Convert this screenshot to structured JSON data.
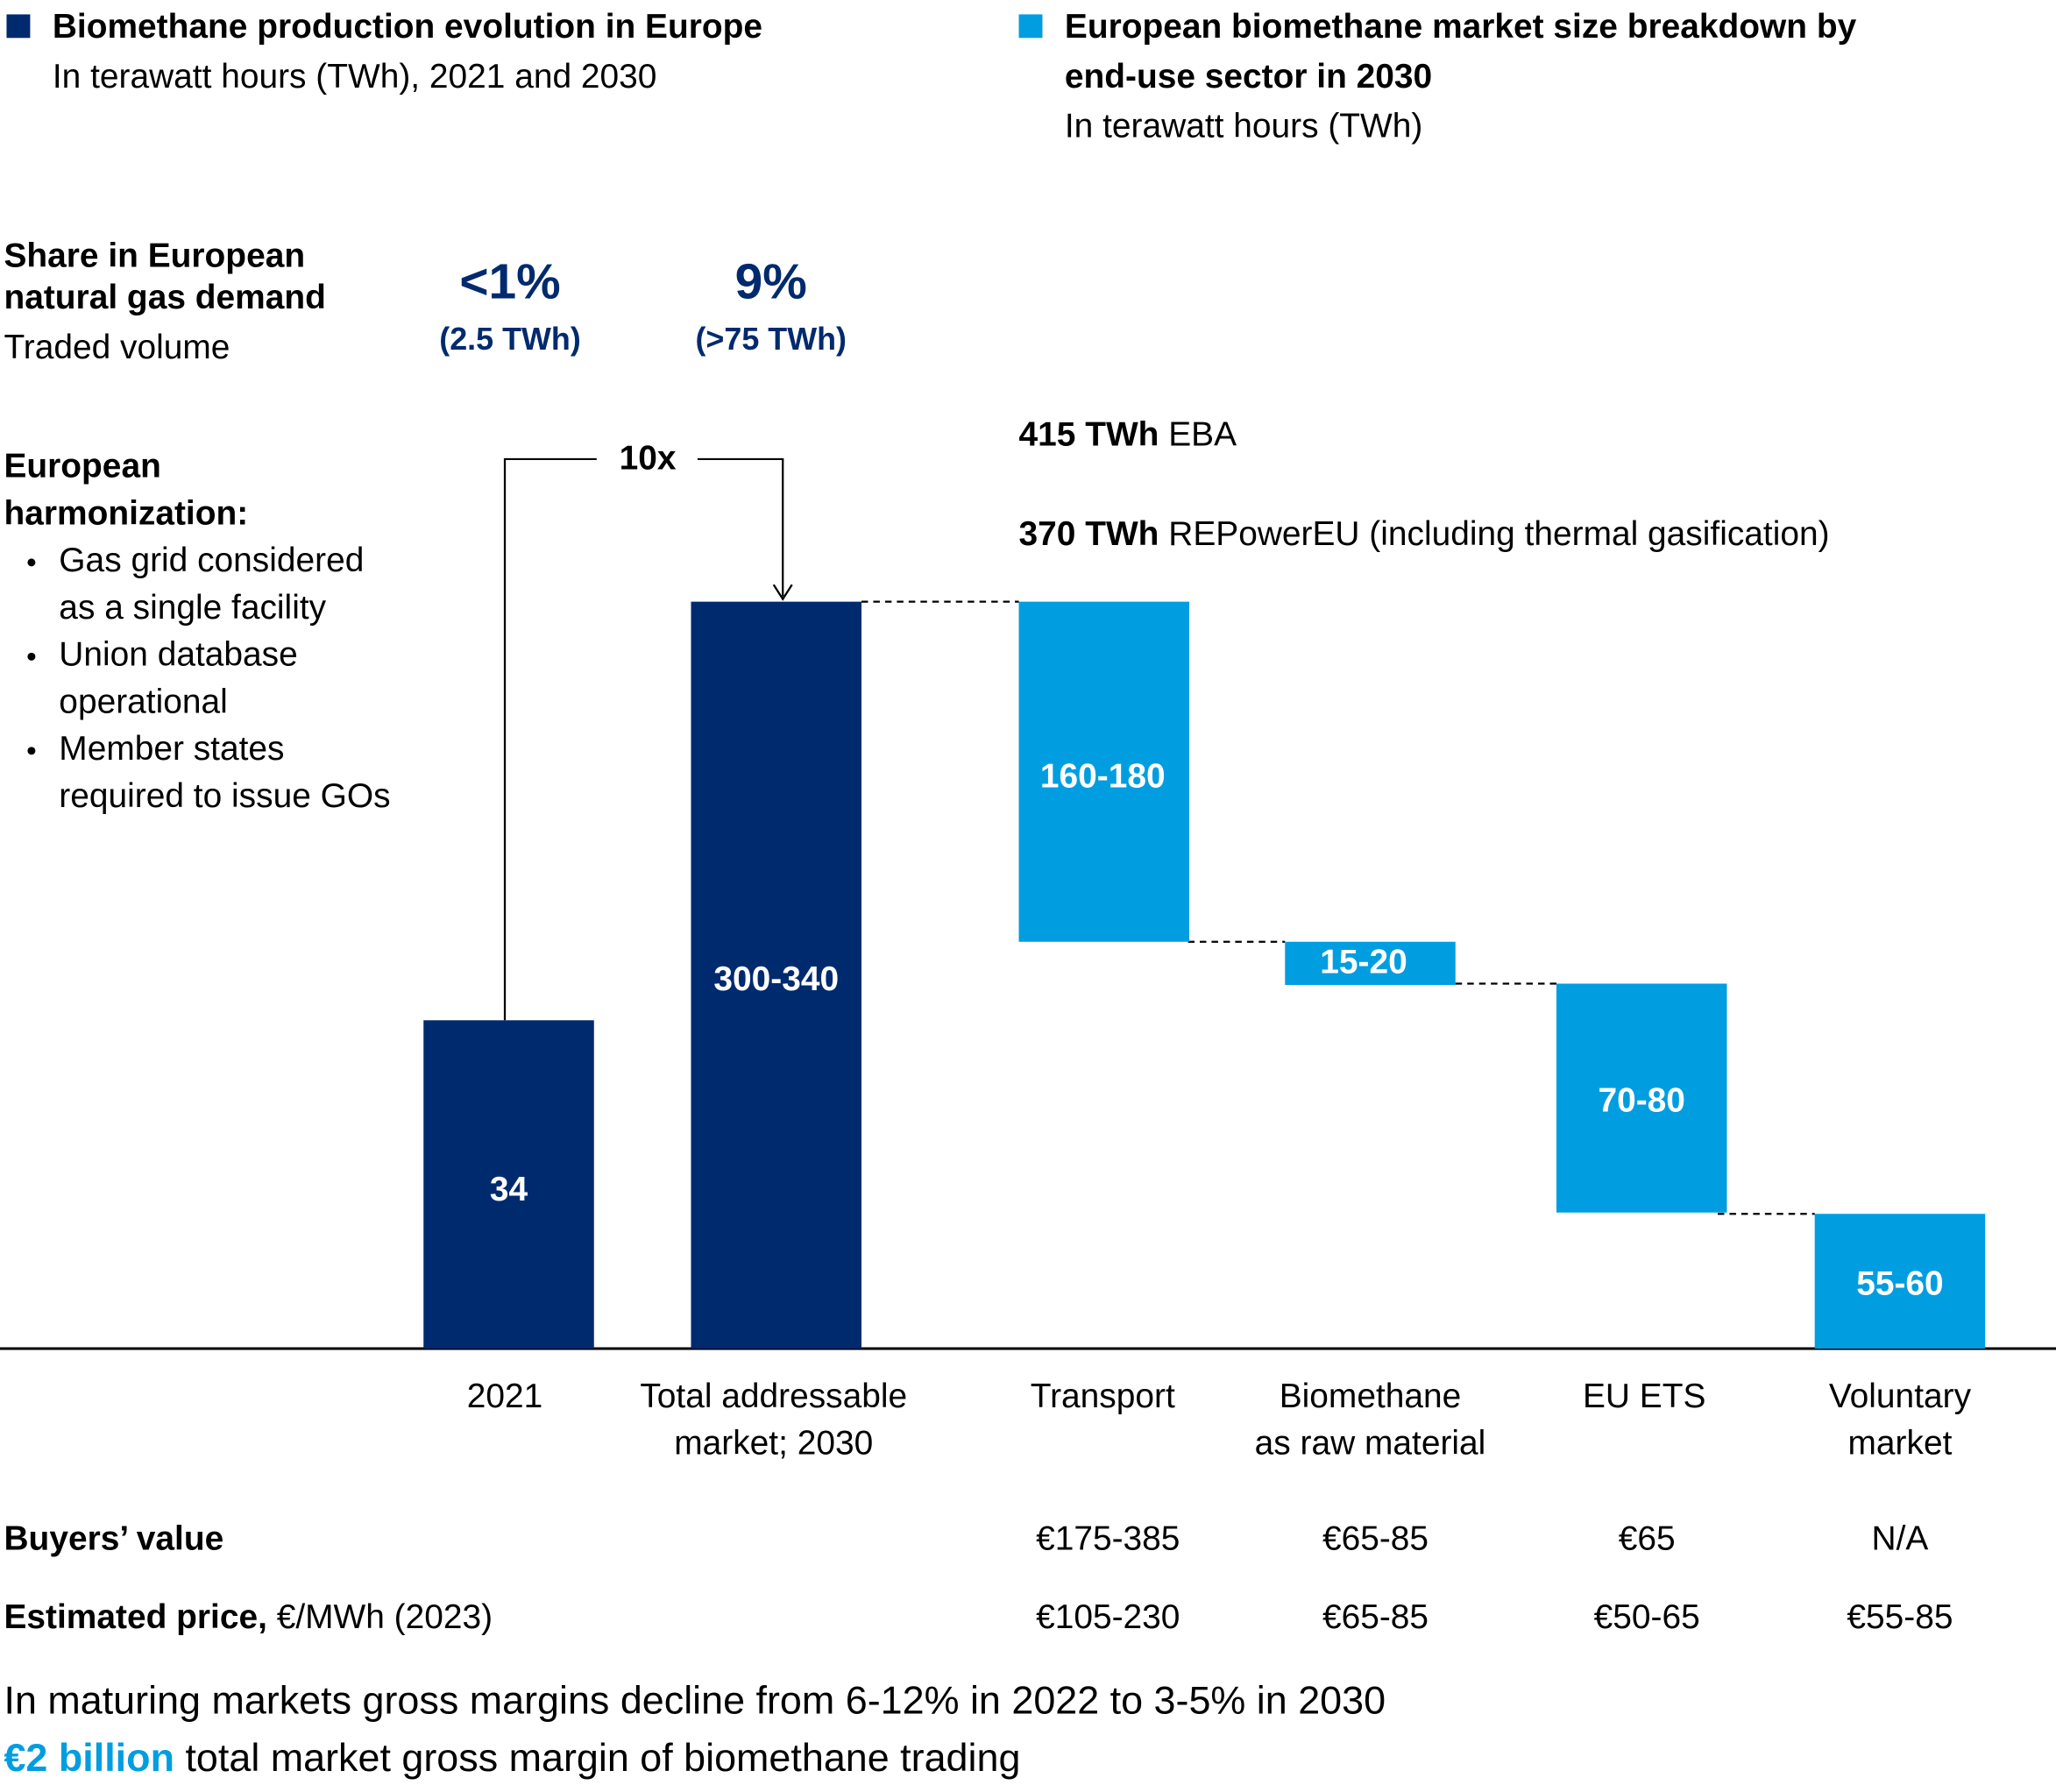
{
  "legend_left": {
    "title": "Biomethane production evolution in Europe",
    "subtitle": "In terawatt hours (TWh), 2021 and 2030"
  },
  "legend_right": {
    "title_lines": [
      "European biomethane market size breakdown by",
      "end-use sector in 2030"
    ],
    "subtitle": "In terawatt hours (TWh)"
  },
  "share": {
    "label_lines": [
      "Share in European",
      "natural gas demand"
    ],
    "sublabel": "Traded volume",
    "values": [
      {
        "pct": "<1%",
        "twh": "(2.5 TWh)"
      },
      {
        "pct": "9%",
        "twh": "(>75 TWh)"
      }
    ]
  },
  "harmonization": {
    "title_lines": [
      "European",
      "harmonization:"
    ],
    "bullets": [
      [
        "Gas grid considered",
        "as a single facility"
      ],
      [
        "Union database",
        "operational"
      ],
      [
        "Member states",
        "required to issue GOs"
      ]
    ]
  },
  "multiplier": "10x",
  "targets": [
    {
      "bold": "415 TWh",
      "text": " EBA"
    },
    {
      "bold": "370 TWh",
      "text": " REPowerEU (including thermal gasification)"
    }
  ],
  "bars": [
    {
      "category_lines": [
        "2021"
      ],
      "label": "34"
    },
    {
      "category_lines": [
        "Total addressable",
        "market; 2030"
      ],
      "label": "300-340"
    },
    {
      "category_lines": [
        "Transport"
      ],
      "label": "160-180"
    },
    {
      "category_lines": [
        "Biomethane",
        "as raw material"
      ],
      "label": "15-20"
    },
    {
      "category_lines": [
        "EU ETS"
      ],
      "label": "70-80"
    },
    {
      "category_lines": [
        "Voluntary",
        "market"
      ],
      "label": "55-60"
    }
  ],
  "buyers_value": {
    "label": "Buyers’ value",
    "values": [
      "€175-385",
      "€65-85",
      "€65",
      "N/A"
    ]
  },
  "estimated_price": {
    "label": "Estimated price,",
    "unit": " €/MWh (2023)",
    "values": [
      "€105-230",
      "€65-85",
      "€50-65",
      "€55-85"
    ]
  },
  "footer": {
    "line1": "In maturing markets gross margins decline from 6-12% in 2022 to 3-5% in 2030",
    "highlight": "€2 billion",
    "rest": " total market gross margin of biomethane trading"
  }
}
